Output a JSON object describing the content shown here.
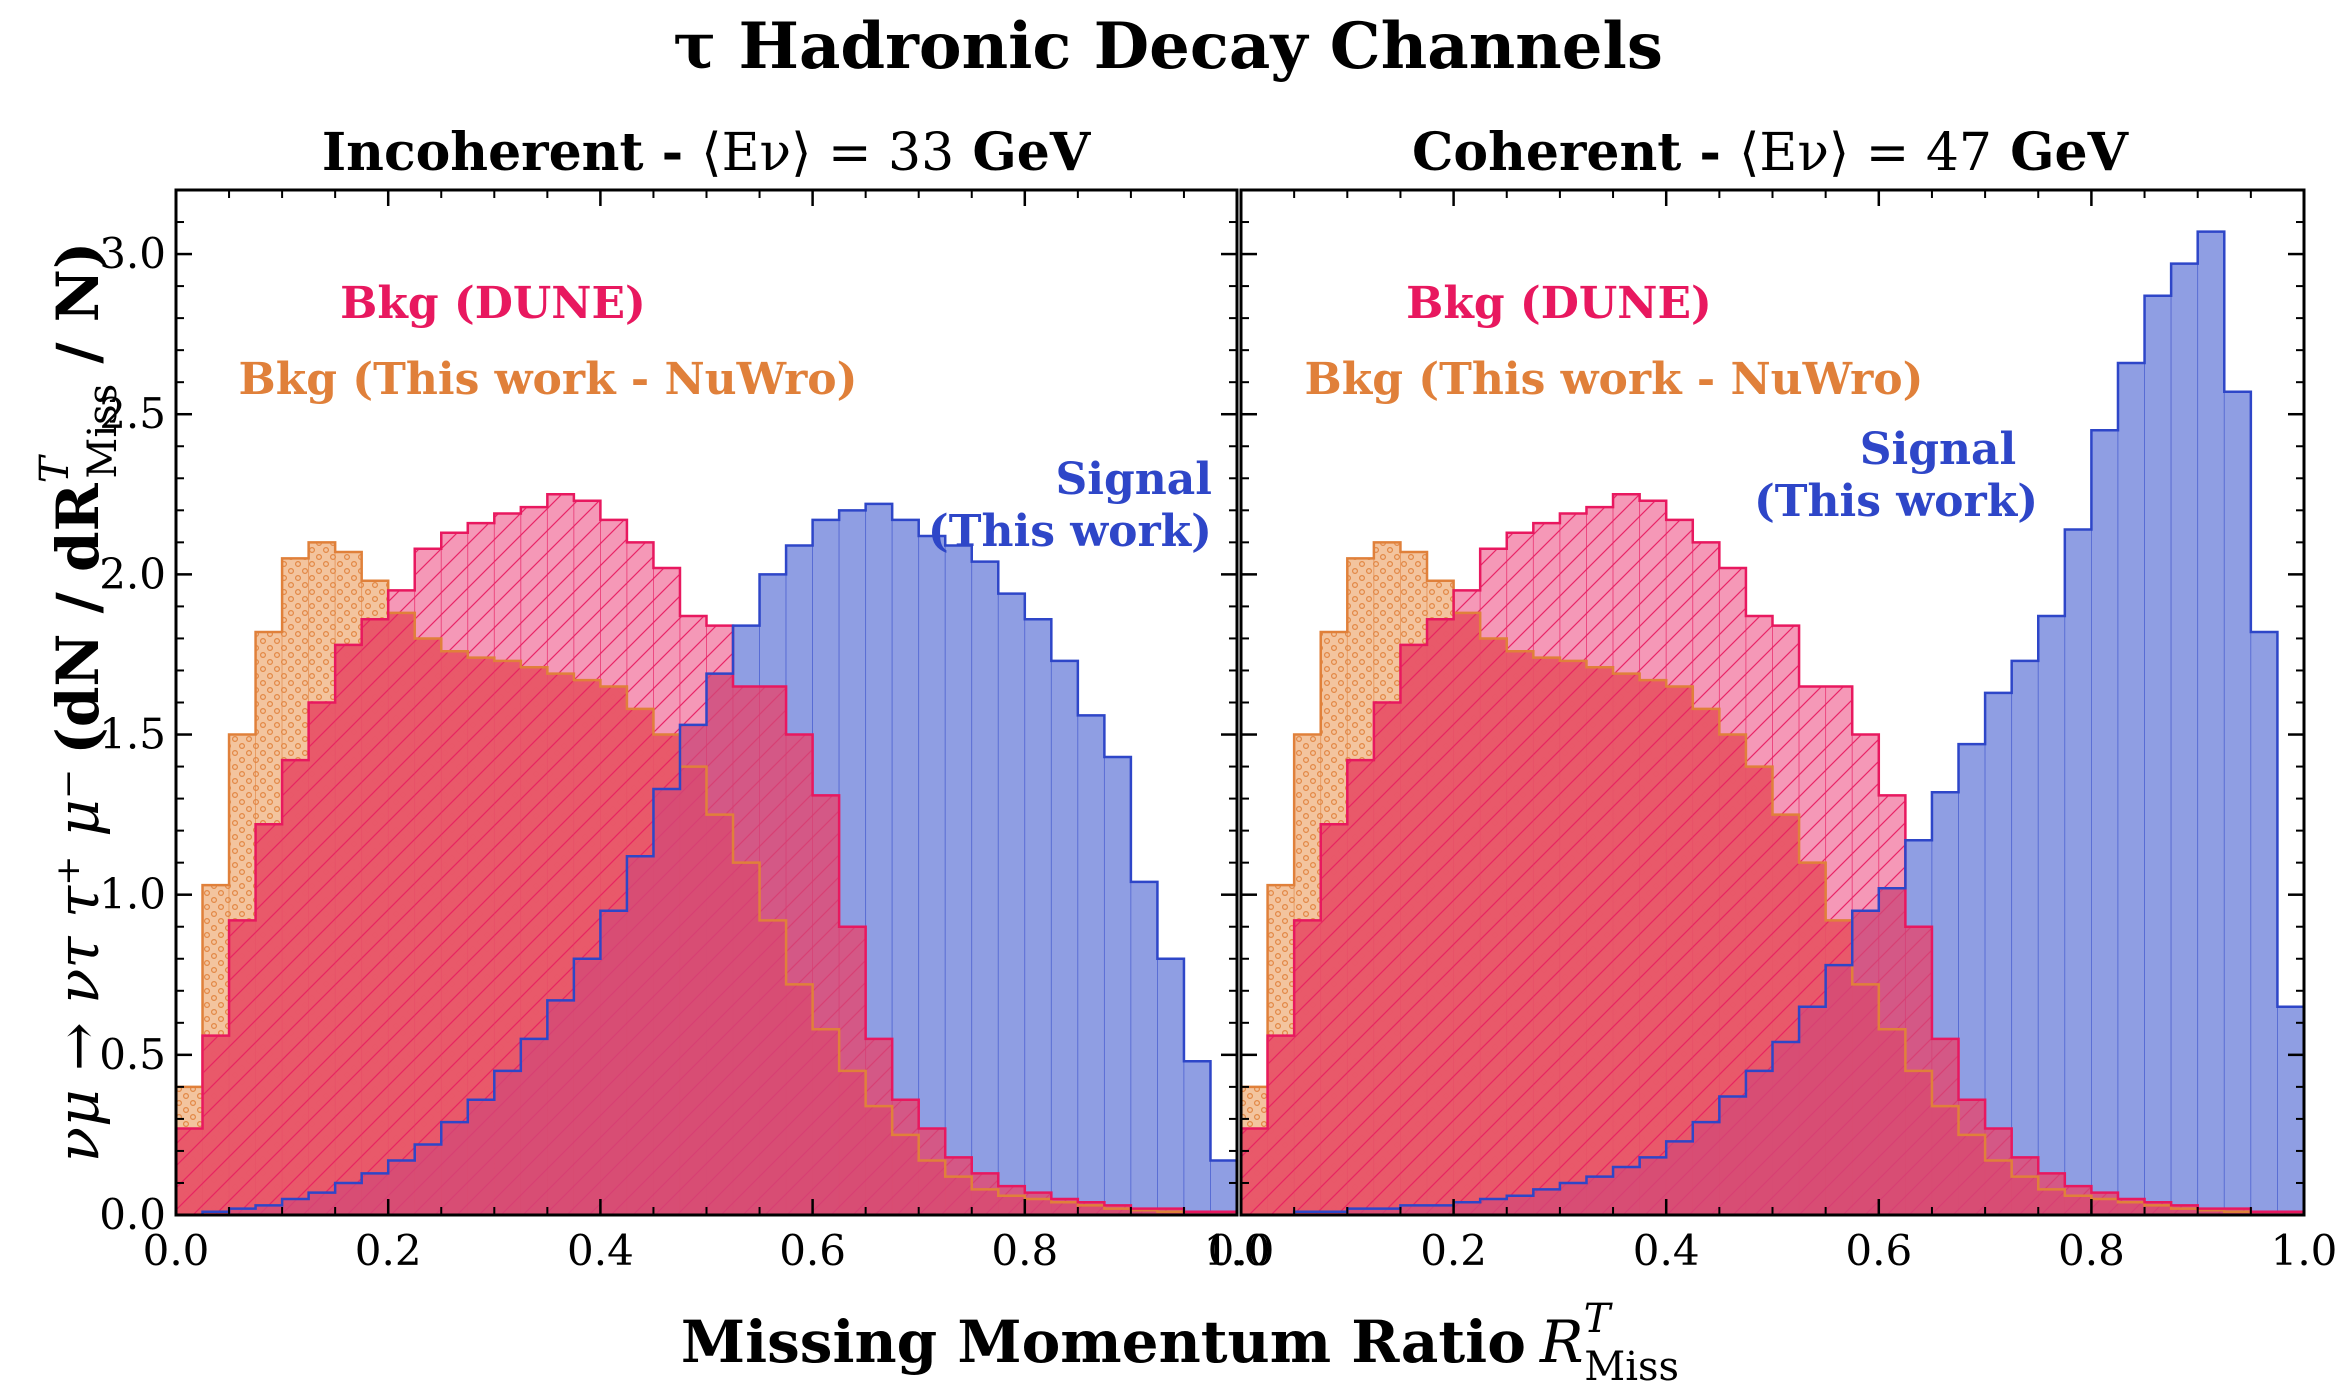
{
  "figure": {
    "title": "τ Hadronic Decay Channels",
    "xlabel": "Missing Momentum Ratio",
    "xlabel_symbol": "R",
    "xlabel_sup": "T",
    "xlabel_sub": "Miss",
    "ylabel_reaction": "νμ → ντ τ⁺ μ⁻",
    "ylabel_quantity": "(dN / dR",
    "ylabel_sup": "T",
    "ylabel_sub": "Miss",
    "ylabel_tail": " / N)"
  },
  "colors": {
    "bkg_dune": "#e8185f",
    "bkg_dune_fill": "#f27ba3",
    "bkg_nuwro": "#e0803a",
    "bkg_nuwro_fill": "#f2be94",
    "signal": "#2e46c8",
    "signal_fill": "#8f9ee3",
    "overlap_fill": "#e85667",
    "signal_dune_overlap": "#d24a78"
  },
  "chart_data": [
    {
      "type": "bar",
      "subtype": "step-histogram",
      "title_prefix": "Incoherent - ",
      "title_math": "⟨Eν⟩ = 33",
      "title_suffix": " GeV",
      "xlim": [
        0,
        1
      ],
      "ylim": [
        0,
        3.2
      ],
      "xticks": [
        "0.0",
        "0.2",
        "0.4",
        "0.6",
        "0.8",
        "1.0"
      ],
      "yticks": [
        "0.0",
        "0.5",
        "1.0",
        "1.5",
        "2.0",
        "2.5",
        "3.0"
      ],
      "bin_width": 0.025,
      "annotations": {
        "dune": "Bkg (DUNE)",
        "nuwro": "Bkg (This work - NuWro)",
        "signal_line1": "Signal",
        "signal_line2": "(This work)"
      },
      "series": [
        {
          "name": "Bkg (This work - NuWro)",
          "values": [
            0.4,
            1.03,
            1.5,
            1.82,
            2.05,
            2.1,
            2.07,
            1.98,
            1.88,
            1.8,
            1.76,
            1.74,
            1.73,
            1.71,
            1.69,
            1.67,
            1.65,
            1.58,
            1.5,
            1.4,
            1.25,
            1.1,
            0.92,
            0.72,
            0.58,
            0.45,
            0.34,
            0.25,
            0.17,
            0.12,
            0.08,
            0.06,
            0.05,
            0.04,
            0.03,
            0.02,
            0.015,
            0.01,
            0.01,
            0.01
          ]
        },
        {
          "name": "Bkg (DUNE)",
          "values": [
            0.27,
            0.56,
            0.92,
            1.22,
            1.42,
            1.6,
            1.78,
            1.86,
            1.95,
            2.08,
            2.13,
            2.16,
            2.19,
            2.21,
            2.25,
            2.23,
            2.17,
            2.1,
            2.02,
            1.87,
            1.84,
            1.65,
            1.65,
            1.5,
            1.31,
            0.9,
            0.55,
            0.36,
            0.27,
            0.18,
            0.13,
            0.09,
            0.07,
            0.05,
            0.04,
            0.03,
            0.02,
            0.02,
            0.01,
            0.01
          ]
        },
        {
          "name": "Signal",
          "values": [
            0.0,
            0.01,
            0.02,
            0.03,
            0.05,
            0.07,
            0.1,
            0.13,
            0.17,
            0.22,
            0.29,
            0.36,
            0.45,
            0.55,
            0.67,
            0.8,
            0.95,
            1.12,
            1.33,
            1.53,
            1.69,
            1.84,
            2.0,
            2.09,
            2.17,
            2.2,
            2.22,
            2.17,
            2.12,
            2.09,
            2.04,
            1.94,
            1.86,
            1.73,
            1.56,
            1.43,
            1.04,
            0.8,
            0.48,
            0.17
          ]
        }
      ]
    },
    {
      "type": "bar",
      "subtype": "step-histogram",
      "title_prefix": "Coherent - ",
      "title_math": "⟨Eν⟩ = 47",
      "title_suffix": " GeV",
      "xlim": [
        0,
        1
      ],
      "ylim": [
        0,
        3.2
      ],
      "xticks": [
        "0.0",
        "0.2",
        "0.4",
        "0.6",
        "0.8",
        "1.0"
      ],
      "yticks": [
        "0.0",
        "0.5",
        "1.0",
        "1.5",
        "2.0",
        "2.5",
        "3.0"
      ],
      "bin_width": 0.025,
      "annotations": {
        "dune": "Bkg (DUNE)",
        "nuwro": "Bkg (This work - NuWro)",
        "signal_line1": "Signal",
        "signal_line2": "(This work)"
      },
      "series": [
        {
          "name": "Bkg (This work - NuWro)",
          "values": [
            0.4,
            1.03,
            1.5,
            1.82,
            2.05,
            2.1,
            2.07,
            1.98,
            1.88,
            1.8,
            1.76,
            1.74,
            1.73,
            1.71,
            1.69,
            1.67,
            1.65,
            1.58,
            1.5,
            1.4,
            1.25,
            1.1,
            0.92,
            0.72,
            0.58,
            0.45,
            0.34,
            0.25,
            0.17,
            0.12,
            0.08,
            0.06,
            0.05,
            0.04,
            0.03,
            0.02,
            0.015,
            0.01,
            0.01,
            0.01
          ]
        },
        {
          "name": "Bkg (DUNE)",
          "values": [
            0.27,
            0.56,
            0.92,
            1.22,
            1.42,
            1.6,
            1.78,
            1.86,
            1.95,
            2.08,
            2.13,
            2.16,
            2.19,
            2.21,
            2.25,
            2.23,
            2.17,
            2.1,
            2.02,
            1.87,
            1.84,
            1.65,
            1.65,
            1.5,
            1.31,
            0.9,
            0.55,
            0.36,
            0.27,
            0.18,
            0.13,
            0.09,
            0.07,
            0.05,
            0.04,
            0.03,
            0.02,
            0.02,
            0.01,
            0.01
          ]
        },
        {
          "name": "Signal",
          "values": [
            0.0,
            0.0,
            0.01,
            0.01,
            0.02,
            0.02,
            0.03,
            0.03,
            0.04,
            0.05,
            0.06,
            0.08,
            0.1,
            0.12,
            0.15,
            0.18,
            0.23,
            0.29,
            0.37,
            0.45,
            0.54,
            0.65,
            0.78,
            0.95,
            1.02,
            1.17,
            1.32,
            1.47,
            1.63,
            1.73,
            1.87,
            2.14,
            2.45,
            2.66,
            2.87,
            2.97,
            3.07,
            2.57,
            1.82,
            0.65
          ]
        }
      ]
    }
  ]
}
